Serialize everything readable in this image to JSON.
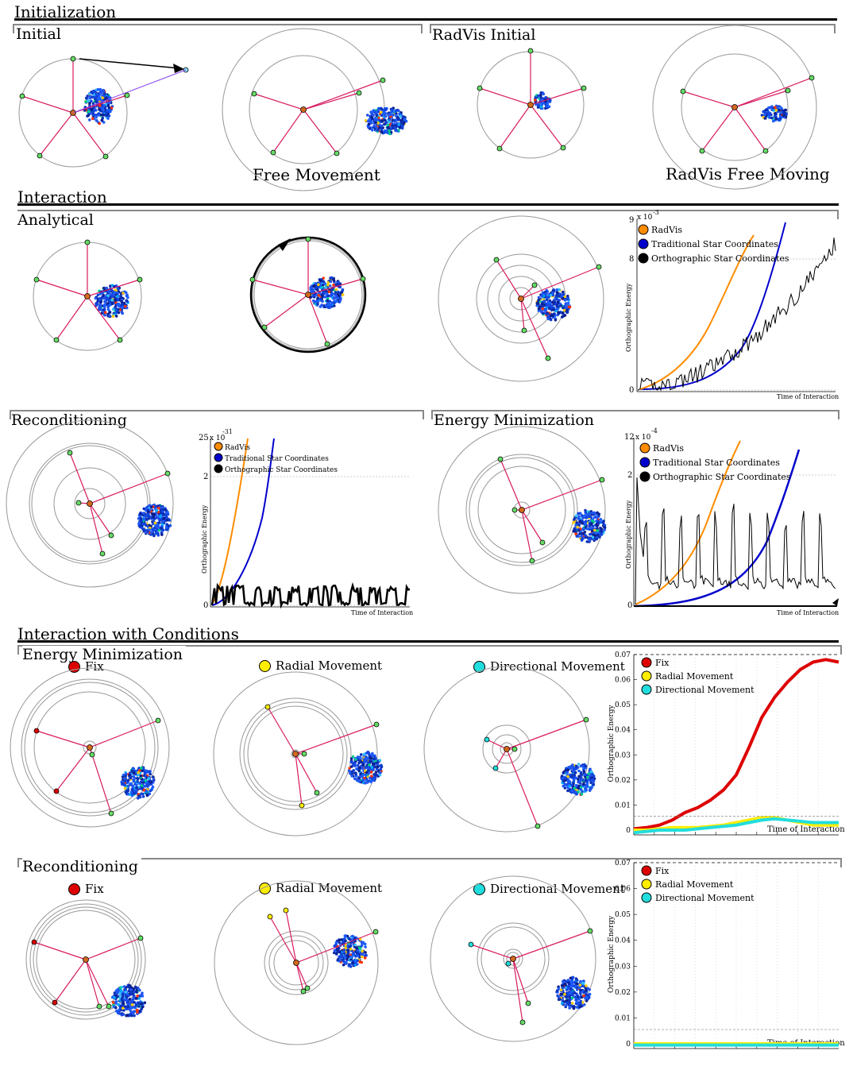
{
  "sections": {
    "initialization": "Initialization",
    "interaction": "Interaction",
    "interaction_conditions": "Interaction with Conditions"
  },
  "subsections": {
    "initial": "Initial",
    "radvis_initial": "RadVis Initial",
    "analytical": "Analytical",
    "reconditioning": "Reconditioning",
    "energy_min": "Energy Minimization",
    "cond_energy_min": "Energy Minimization",
    "cond_reconditioning": "Reconditioning"
  },
  "captions": {
    "free_movement": "Free Movement",
    "radvis_free": "RadVis Free Moving"
  },
  "modes": {
    "fix": "Fix",
    "radial": "Radial Movement",
    "directional": "Directional Movement"
  },
  "colors": {
    "axis": "#d81b60",
    "anchor": "#66dd66",
    "center": "#d2691e",
    "radvis": "#ff8c00",
    "traditional": "#0000cc",
    "orthographic": "#000000",
    "fix": "#dd0000",
    "radial": "#ffee00",
    "directional": "#22dddd"
  },
  "chart_data": [
    {
      "type": "line",
      "ylabel": "Orthographic Energy",
      "xlabel": "Time of Interaction",
      "y_exponent": "x10^-3",
      "y_tick_labels": [
        "9",
        "8",
        "0"
      ],
      "y_exponent_label": "x 10",
      "y_exponent_power": "-3",
      "legend": [
        "RadVis",
        "Traditional Star Coordinates",
        "Orthographic Star Coordinates"
      ],
      "legend_position": "top-left"
    },
    {
      "type": "line",
      "ylabel": "Orthographic Energy",
      "xlabel": "Time of Interaction",
      "y_tick_labels": [
        "25",
        "2",
        "0"
      ],
      "y_exponent_label": "x 10",
      "y_exponent_power": "-31",
      "legend": [
        "RadVis",
        "Traditional Star Coordinates",
        "Orthographic Star Coordinates"
      ],
      "legend_position": "top-left"
    },
    {
      "type": "line",
      "ylabel": "Orthographic Energy",
      "xlabel": "Time of Interaction",
      "y_tick_labels": [
        "12",
        "2",
        "0"
      ],
      "y_exponent_label": "x 10",
      "y_exponent_power": "-4",
      "legend": [
        "RadVis",
        "Traditional Star Coordinates",
        "Orthographic Star Coordinates"
      ],
      "legend_position": "top-left"
    },
    {
      "type": "line",
      "ylabel": "Orthographic Energy",
      "xlabel": "Time of Interaction",
      "y_tick_labels": [
        "0.07",
        "0.06",
        "0.05",
        "0.04",
        "0.03",
        "0.02",
        "0.01",
        "0"
      ],
      "ylim": [
        0,
        0.07
      ],
      "legend": [
        "Fix",
        "Radial Movement",
        "Directional Movement"
      ],
      "legend_position": "top-left",
      "series": [
        {
          "name": "Fix",
          "values": [
            0.0005,
            0.001,
            0.002,
            0.004,
            0.007,
            0.009,
            0.012,
            0.016,
            0.022,
            0.033,
            0.045,
            0.053,
            0.059,
            0.064,
            0.067,
            0.068,
            0.067
          ]
        },
        {
          "name": "Radial Movement",
          "values": [
            0,
            0,
            0.0005,
            0.001,
            0.001,
            0.001,
            0.0015,
            0.002,
            0.003,
            0.004,
            0.005,
            0.005,
            0.004,
            0.003,
            0.002,
            0.002,
            0.002
          ]
        },
        {
          "name": "Directional Movement",
          "values": [
            -0.001,
            -0.0005,
            0,
            0,
            0,
            0.0005,
            0.001,
            0.0015,
            0.002,
            0.003,
            0.004,
            0.0045,
            0.004,
            0.0035,
            0.003,
            0.003,
            0.003
          ]
        }
      ]
    },
    {
      "type": "line",
      "ylabel": "Orthographic Energy",
      "xlabel": "Time of Interaction",
      "y_tick_labels": [
        "0.07",
        "0.06",
        "0.05",
        "0.04",
        "0.03",
        "0.02",
        "0.01",
        "0"
      ],
      "ylim": [
        0,
        0.07
      ],
      "legend": [
        "Fix",
        "Radial Movement",
        "Directional Movement"
      ],
      "legend_position": "top-left",
      "series": [
        {
          "name": "Fix",
          "values": [
            0,
            0,
            0,
            0,
            0,
            0,
            0,
            0,
            0,
            0
          ]
        },
        {
          "name": "Radial Movement",
          "values": [
            0,
            0,
            0,
            0,
            0,
            0,
            0,
            0,
            0,
            0
          ]
        },
        {
          "name": "Directional Movement",
          "values": [
            -0.0005,
            -0.0005,
            -0.0005,
            -0.0005,
            -0.0005,
            -0.0005,
            -0.0005,
            -0.0005,
            -0.0005,
            -0.0005
          ]
        }
      ]
    }
  ]
}
